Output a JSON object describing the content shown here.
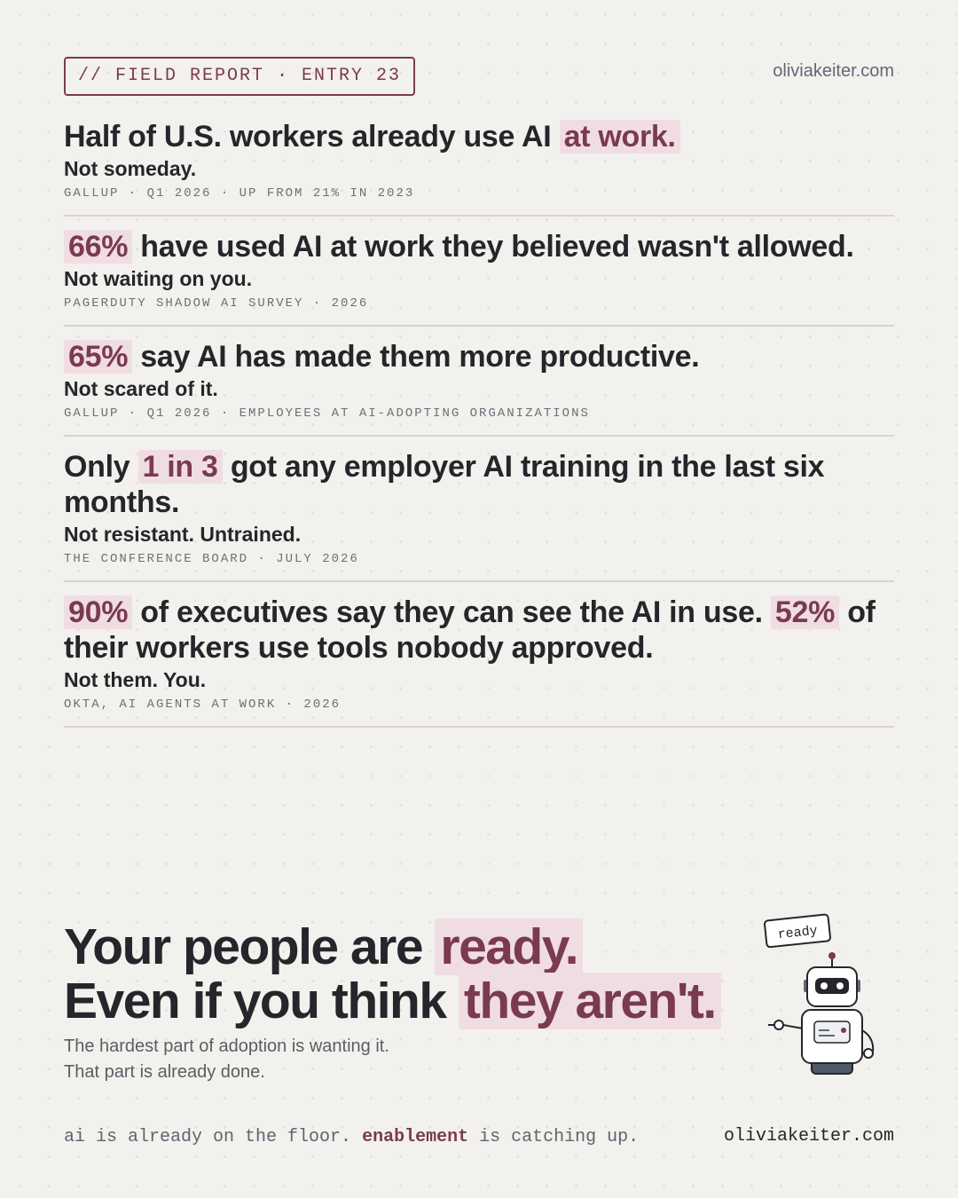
{
  "header": {
    "tag": "// FIELD REPORT · ENTRY 23",
    "site": "oliviakeiter.com"
  },
  "stats": [
    {
      "headline": [
        "Half of U.S. workers already use AI ",
        {
          "text": "at work.",
          "highlight": true
        }
      ],
      "sub": "Not someday.",
      "source": "GALLUP · Q1 2026 · UP FROM 21% IN 2023"
    },
    {
      "headline": [
        {
          "text": "66%",
          "highlight": true
        },
        " have used AI at work they believed wasn't allowed."
      ],
      "sub": "Not waiting on you.",
      "source": "PAGERDUTY SHADOW AI SURVEY · 2026"
    },
    {
      "headline": [
        {
          "text": "65%",
          "highlight": true
        },
        " say AI has made them more productive."
      ],
      "sub": "Not scared of it.",
      "source": "GALLUP · Q1 2026 · EMPLOYEES AT AI-ADOPTING ORGANIZATIONS"
    },
    {
      "headline": [
        "Only ",
        {
          "text": "1 in 3",
          "highlight": true
        },
        " got any employer AI training in the last six months."
      ],
      "sub": "Not resistant. Untrained.",
      "source": "THE CONFERENCE BOARD · JULY 2026"
    },
    {
      "headline": [
        {
          "text": "90%",
          "highlight": true
        },
        " of executives say they can see the AI in use. ",
        {
          "text": "52%",
          "highlight": true
        },
        " of their workers use tools nobody approved."
      ],
      "sub": "Not them. You.",
      "source": "OKTA, AI AGENTS AT WORK · 2026"
    }
  ],
  "closing": {
    "headline": [
      [
        "Your people are ",
        {
          "text": "ready.",
          "highlight": true
        }
      ],
      [
        "Even if you think ",
        {
          "text": "they aren't.",
          "highlight": true
        }
      ]
    ],
    "body": [
      "The hardest part of adoption is wanting it.",
      "That part is already done."
    ],
    "robot_label": "ready"
  },
  "footer": {
    "tagline": [
      "ai is already on the floor. ",
      {
        "text": "enablement",
        "bold": true
      },
      " is catching up."
    ],
    "site": "oliviakeiter.com"
  }
}
